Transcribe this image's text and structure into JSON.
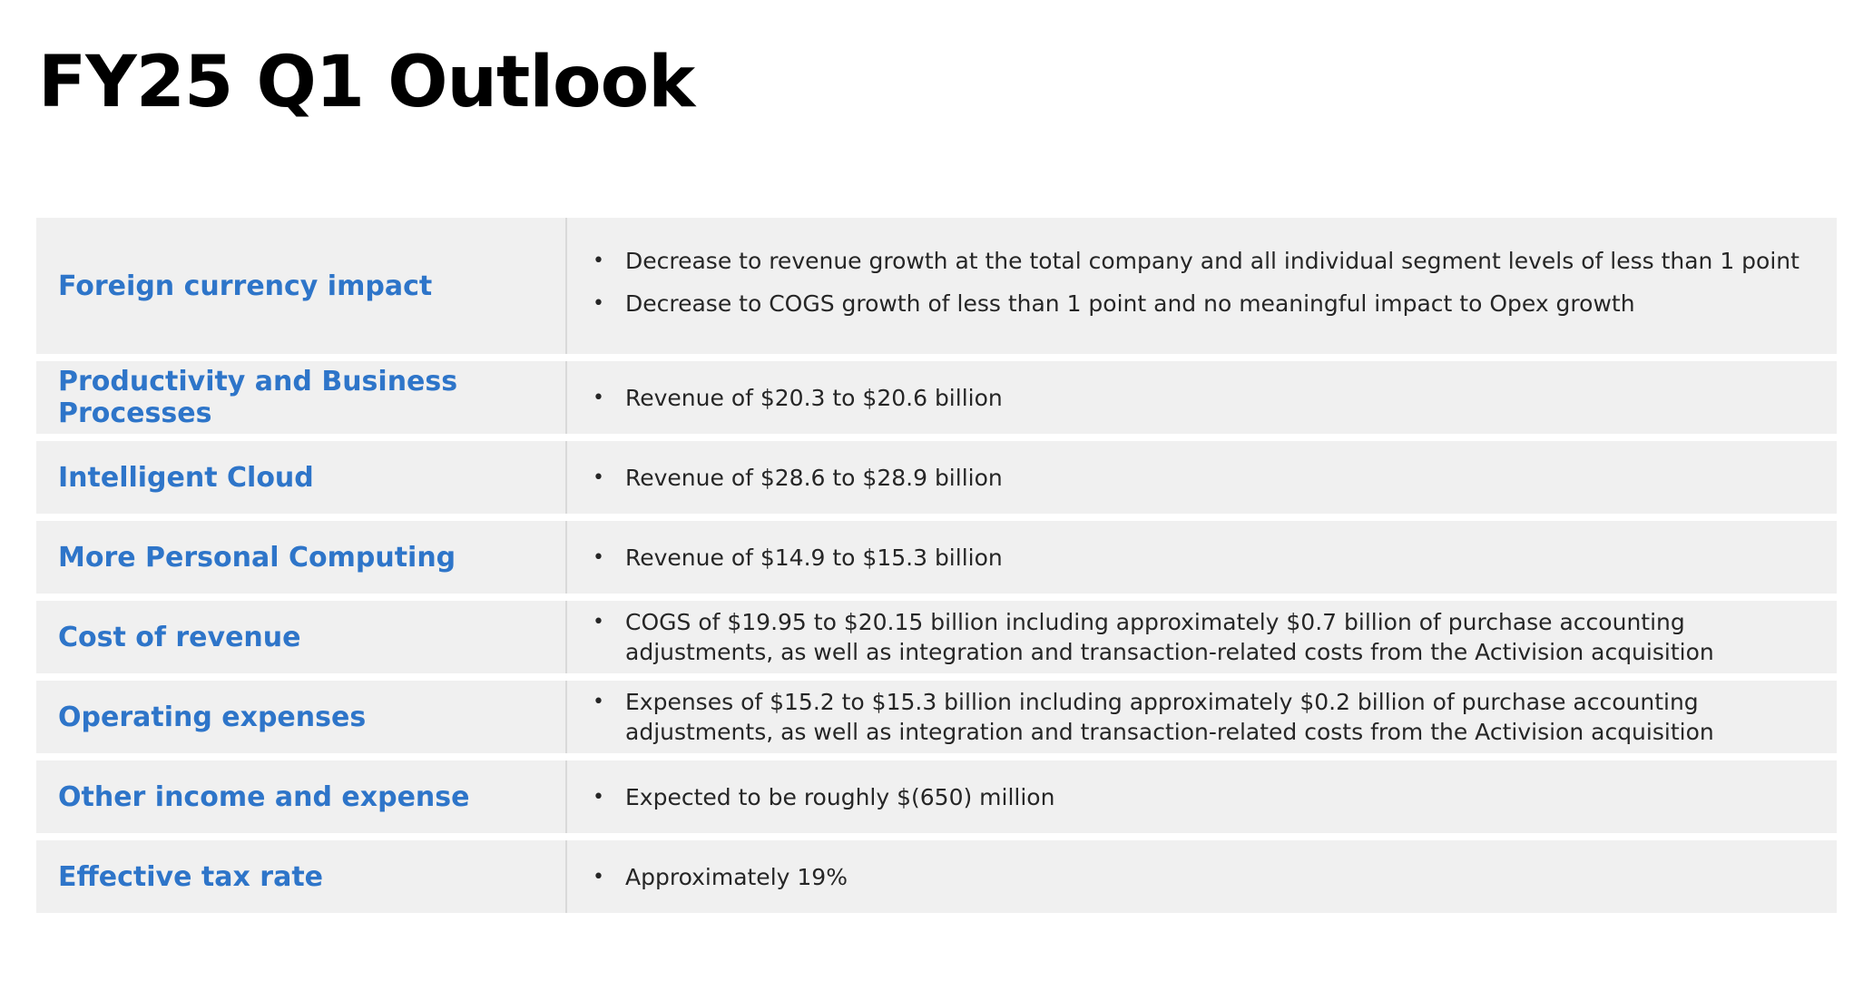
{
  "page": {
    "title": "FY25 Q1 Outlook"
  },
  "table": {
    "rows": [
      {
        "label": "Foreign currency impact",
        "bullets": [
          "Decrease to revenue growth at the total company and all individual segment levels of less than 1 point",
          "Decrease to COGS growth of less than 1 point and no meaningful impact to Opex growth"
        ]
      },
      {
        "label": "Productivity and Business Processes",
        "bullets": [
          "Revenue of $20.3 to $20.6 billion"
        ]
      },
      {
        "label": "Intelligent Cloud",
        "bullets": [
          "Revenue of $28.6 to $28.9 billion"
        ]
      },
      {
        "label": "More Personal Computing",
        "bullets": [
          "Revenue of $14.9 to $15.3 billion"
        ]
      },
      {
        "label": "Cost of revenue",
        "bullets": [
          "COGS of $19.95 to $20.15 billion including approximately $0.7 billion of purchase accounting adjustments, as well as integration and transaction-related costs from the Activision acquisition"
        ]
      },
      {
        "label": "Operating expenses",
        "bullets": [
          "Expenses of $15.2 to $15.3 billion including approximately $0.2 billion of purchase accounting adjustments, as well as integration and transaction-related costs from the Activision acquisition"
        ]
      },
      {
        "label": "Other income and expense",
        "bullets": [
          "Expected to be roughly $(650) million"
        ]
      },
      {
        "label": "Effective tax rate",
        "bullets": [
          "Approximately 19%"
        ]
      }
    ]
  },
  "colors": {
    "label": "#2e75c9",
    "row_background": "#f0f0f0",
    "text": "#262626"
  }
}
